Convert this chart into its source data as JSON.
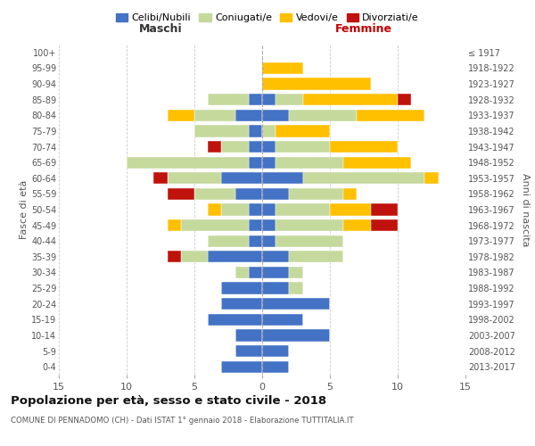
{
  "age_groups": [
    "0-4",
    "5-9",
    "10-14",
    "15-19",
    "20-24",
    "25-29",
    "30-34",
    "35-39",
    "40-44",
    "45-49",
    "50-54",
    "55-59",
    "60-64",
    "65-69",
    "70-74",
    "75-79",
    "80-84",
    "85-89",
    "90-94",
    "95-99",
    "100+"
  ],
  "birth_years": [
    "2013-2017",
    "2008-2012",
    "2003-2007",
    "1998-2002",
    "1993-1997",
    "1988-1992",
    "1983-1987",
    "1978-1982",
    "1973-1977",
    "1968-1972",
    "1963-1967",
    "1958-1962",
    "1953-1957",
    "1948-1952",
    "1943-1947",
    "1938-1942",
    "1933-1937",
    "1928-1932",
    "1923-1927",
    "1918-1922",
    "≤ 1917"
  ],
  "maschi": {
    "celibi": [
      3,
      2,
      2,
      4,
      3,
      3,
      1,
      4,
      1,
      1,
      1,
      2,
      3,
      1,
      1,
      1,
      2,
      1,
      0,
      0,
      0
    ],
    "coniugati": [
      0,
      0,
      0,
      0,
      0,
      0,
      1,
      2,
      3,
      5,
      2,
      3,
      4,
      9,
      2,
      4,
      3,
      3,
      0,
      0,
      0
    ],
    "vedovi": [
      0,
      0,
      0,
      0,
      0,
      0,
      0,
      0,
      0,
      1,
      1,
      0,
      0,
      0,
      0,
      0,
      2,
      0,
      0,
      0,
      0
    ],
    "divorziati": [
      0,
      0,
      0,
      0,
      0,
      0,
      0,
      1,
      0,
      0,
      0,
      2,
      1,
      0,
      1,
      0,
      0,
      0,
      0,
      0,
      0
    ]
  },
  "femmine": {
    "celibi": [
      2,
      2,
      5,
      3,
      5,
      2,
      2,
      2,
      1,
      1,
      1,
      2,
      3,
      1,
      1,
      0,
      2,
      1,
      0,
      0,
      0
    ],
    "coniugati": [
      0,
      0,
      0,
      0,
      0,
      1,
      1,
      4,
      5,
      5,
      4,
      4,
      9,
      5,
      4,
      1,
      5,
      2,
      0,
      0,
      0
    ],
    "vedovi": [
      0,
      0,
      0,
      0,
      0,
      0,
      0,
      0,
      0,
      2,
      3,
      1,
      1,
      5,
      5,
      4,
      5,
      7,
      8,
      3,
      0
    ],
    "divorziati": [
      0,
      0,
      0,
      0,
      0,
      0,
      0,
      0,
      0,
      2,
      2,
      0,
      0,
      0,
      0,
      0,
      0,
      1,
      0,
      0,
      0
    ]
  },
  "colors": {
    "celibi": "#4472c4",
    "coniugati": "#c5d99d",
    "vedovi": "#ffc000",
    "divorziati": "#c0120c"
  },
  "legend_labels": [
    "Celibi/Nubili",
    "Coniugati/e",
    "Vedovi/e",
    "Divorziati/e"
  ],
  "title": "Popolazione per età, sesso e stato civile - 2018",
  "subtitle": "COMUNE DI PENNADOMO (CH) - Dati ISTAT 1° gennaio 2018 - Elaborazione TUTTITALIA.IT",
  "xlabel_left": "Maschi",
  "xlabel_right": "Femmine",
  "ylabel_left": "Fasce di età",
  "ylabel_right": "Anni di nascita",
  "xlim": 15,
  "bg_color": "#ffffff",
  "grid_color": "#cccccc"
}
